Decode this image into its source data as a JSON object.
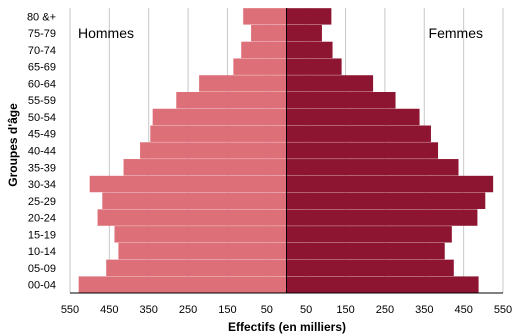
{
  "chart_data": {
    "type": "bar",
    "orientation": "horizontal",
    "subtype": "population-pyramid",
    "xlabel": "Effectifs (en milliers)",
    "ylabel": "Groupes d'âge",
    "xlim": [
      -550,
      550
    ],
    "x_ticks": [
      -550,
      -450,
      -350,
      -250,
      -150,
      -50,
      50,
      150,
      250,
      350,
      450,
      550
    ],
    "x_tick_labels": [
      "550",
      "450",
      "350",
      "250",
      "150",
      "50",
      "50",
      "150",
      "250",
      "350",
      "450",
      "550"
    ],
    "grid": "vertical",
    "categories": [
      "80 &+",
      "75-79",
      "70-74",
      "65-69",
      "60-64",
      "55-59",
      "50-54",
      "45-49",
      "40-44",
      "35-39",
      "30-34",
      "25-29",
      "20-24",
      "15-19",
      "10-14",
      "05-09",
      "00-04"
    ],
    "series": [
      {
        "name": "Hommes",
        "side": "left",
        "color": "#dd6f78",
        "values": [
          110,
          90,
          115,
          135,
          222,
          280,
          340,
          346,
          372,
          414,
          500,
          468,
          480,
          437,
          427,
          458,
          528
        ]
      },
      {
        "name": "Femmes",
        "side": "right",
        "color": "#8e1531",
        "values": [
          114,
          90,
          117,
          140,
          220,
          277,
          338,
          367,
          385,
          437,
          525,
          505,
          485,
          420,
          402,
          425,
          488
        ]
      }
    ],
    "labels_position": {
      "Hommes": "top-left",
      "Femmes": "top-right"
    }
  }
}
